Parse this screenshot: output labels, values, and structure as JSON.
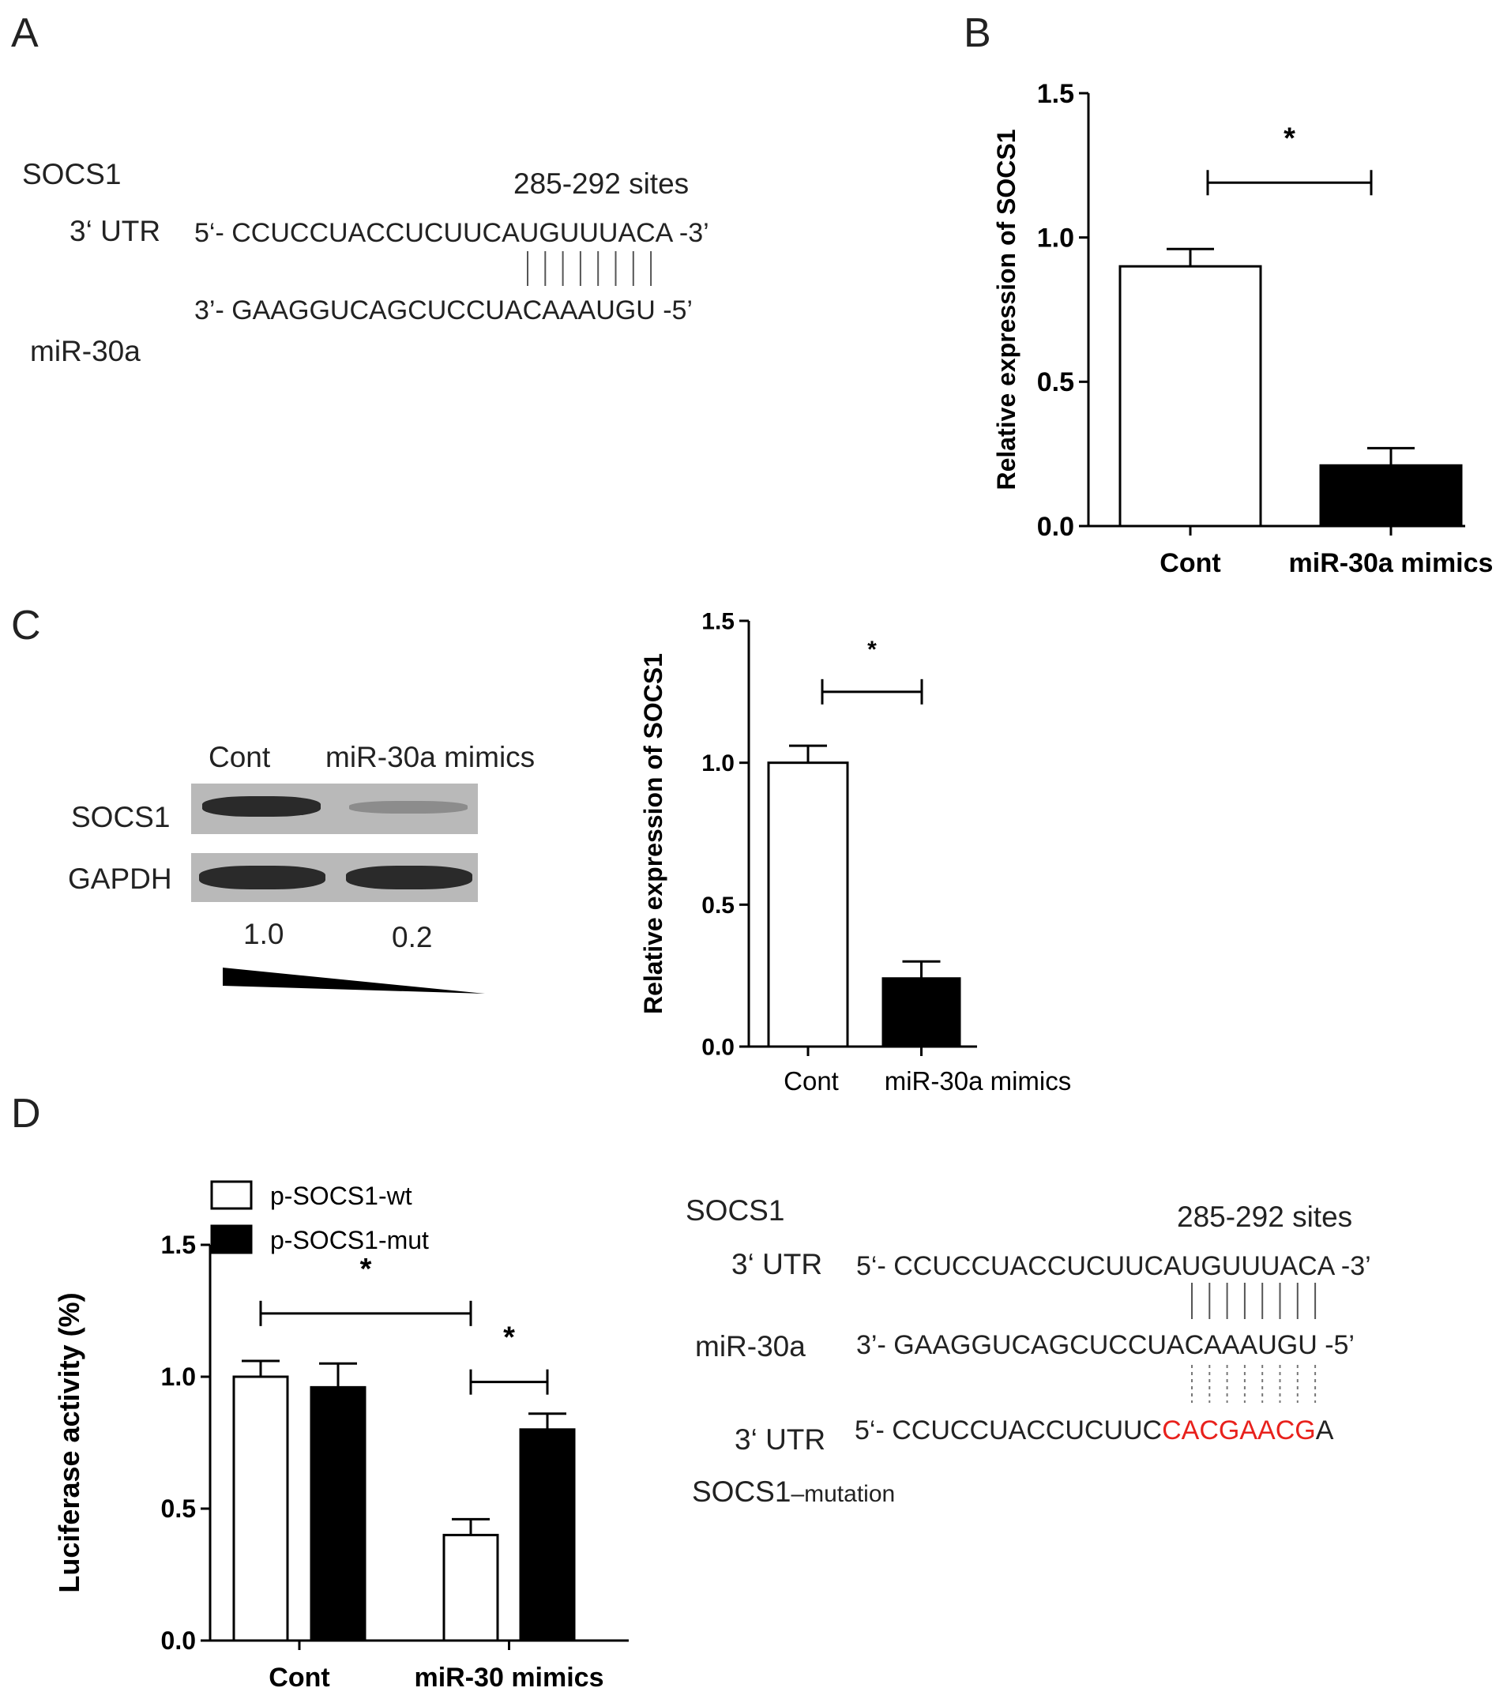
{
  "panels": {
    "a": "A",
    "b": "B",
    "c": "C",
    "d": "D"
  },
  "panel_a": {
    "gene": "SOCS1",
    "site": "285-292 sites",
    "utr_label": "3‘ UTR",
    "utr_seq": "5‘- CCUCCUACCUCUUCAUGUUUACA -3’",
    "mirna_seq": "3’-   GAAGGUCAGCUCCUACAAAUGU -5’",
    "mirna_label": "miR-30a"
  },
  "panel_c_blot": {
    "lane1": "Cont",
    "lane2": "miR-30a mimics",
    "row1": "SOCS1",
    "row2": "GAPDH",
    "q1": "1.0",
    "q2": "0.2",
    "colors": {
      "band": "#2a2a2a",
      "blot_bg": "#b9b9b9"
    }
  },
  "panel_d_seq": {
    "gene": "SOCS1",
    "site": "285-292 sites",
    "utr_label": "3‘ UTR",
    "utr_seq": "5‘- CCUCCUACCUCUUCAUGUUUACA -3’",
    "mirna_label": "miR-30a",
    "mirna_seq": "3’-   GAAGGUCAGCUCCUACAAAUGU -5’",
    "mut_utr_label": "3‘ UTR",
    "mut_prefix": "5‘-  CCUCCUACCUCUUC",
    "mut_red": "CACGAACG",
    "mut_suffix": "A",
    "mut_gene": "SOCS1",
    "mut_gene_sub": "–mutation",
    "colors": {
      "mutation": "#e8211c"
    }
  },
  "chart_data": [
    {
      "id": "B",
      "type": "bar",
      "categories": [
        "Cont",
        "miR-30a mimics"
      ],
      "values": [
        0.9,
        0.21
      ],
      "errors": [
        0.06,
        0.06
      ],
      "fills": [
        "#ffffff",
        "#000000"
      ],
      "ylabel": "Relative expression of SOCS1",
      "ylim": [
        0,
        1.5
      ],
      "yticks": [
        "0.0",
        "0.5",
        "1.0",
        "1.5"
      ],
      "significance": [
        {
          "from": 0,
          "to": 1,
          "label": "*",
          "level": 1.19
        }
      ],
      "grid": false
    },
    {
      "id": "C",
      "type": "bar",
      "categories": [
        "Cont",
        "miR-30a mimics"
      ],
      "values": [
        1.0,
        0.24
      ],
      "errors": [
        0.06,
        0.06
      ],
      "fills": [
        "#ffffff",
        "#000000"
      ],
      "ylabel": "Relative expression of SOCS1",
      "ylim": [
        0,
        1.5
      ],
      "yticks": [
        "0.0",
        "0.5",
        "1.0",
        "1.5"
      ],
      "significance": [
        {
          "from": 0,
          "to": 1,
          "label": "*",
          "level": 1.25
        }
      ],
      "grid": false
    },
    {
      "id": "D",
      "type": "bar",
      "categories": [
        "Cont",
        "miR-30 mimics"
      ],
      "series": [
        {
          "name": "p-SOCS1-wt",
          "values": [
            1.0,
            0.4
          ],
          "errors": [
            0.06,
            0.06
          ],
          "color": "#ffffff"
        },
        {
          "name": "p-SOCS1-mut",
          "values": [
            0.96,
            0.8
          ],
          "errors": [
            0.09,
            0.06
          ],
          "color": "#000000"
        }
      ],
      "ylabel": "Luciferase activity (%)",
      "ylim": [
        0,
        1.5
      ],
      "yticks": [
        "0.0",
        "0.5",
        "1.0",
        "1.5"
      ],
      "significance": [
        {
          "from": [
            0,
            0
          ],
          "to": [
            1,
            0
          ],
          "label": "*",
          "level": 1.24
        },
        {
          "from": [
            1,
            0
          ],
          "to": [
            1,
            1
          ],
          "label": "*",
          "level": 0.98
        }
      ],
      "legend": "top-left",
      "grid": false
    }
  ]
}
